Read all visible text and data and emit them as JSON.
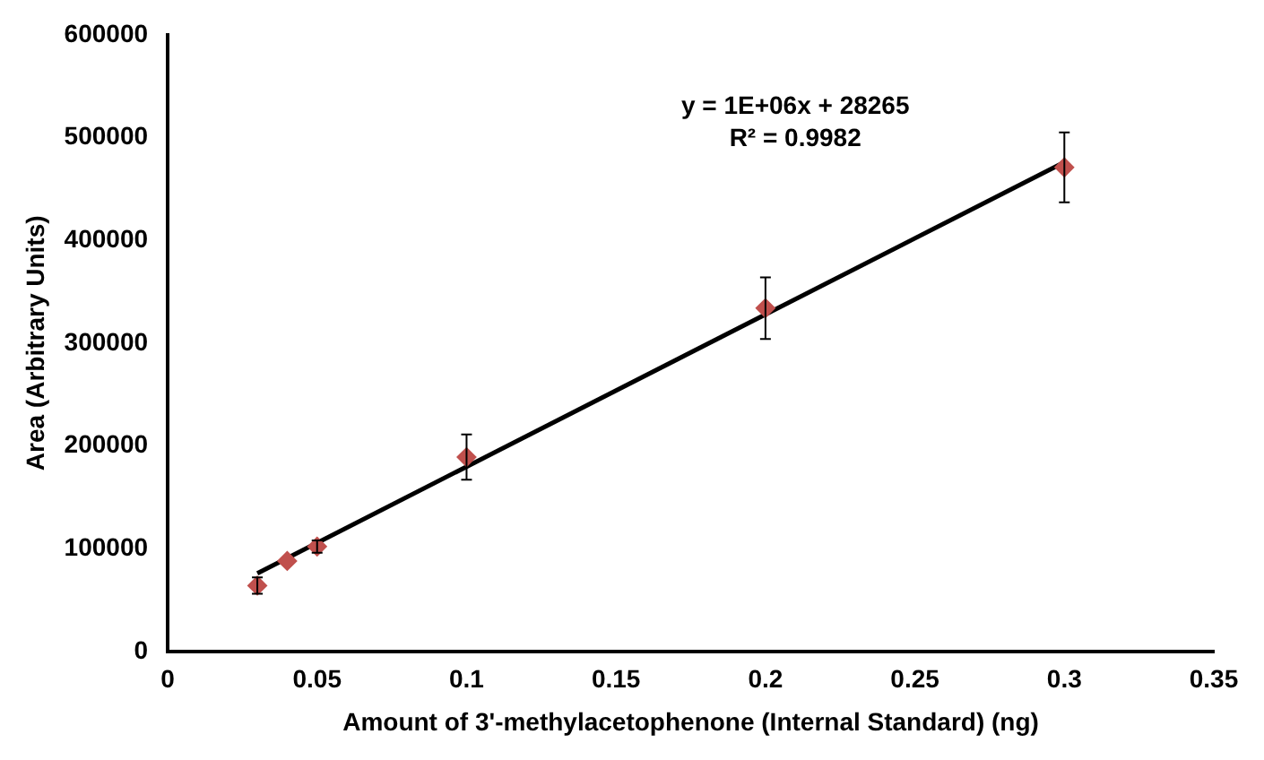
{
  "chart_data": {
    "type": "scatter",
    "xlabel": "Amount of 3'-methylacetophenone (Internal Standard) (ng)",
    "ylabel": "Area (Arbitrary Units)",
    "annotations": [
      "y = 1E+06x + 28265",
      "R² = 0.9982"
    ],
    "series": [
      {
        "type": "scatter",
        "color": "#c0504d",
        "x": [
          0.03,
          0.04,
          0.05,
          0.1,
          0.2,
          0.3
        ],
        "values": [
          64000,
          88000,
          102000,
          189000,
          334000,
          471000
        ],
        "errors": [
          8000,
          null,
          6000,
          22000,
          30000,
          34000
        ],
        "marker": "diamond"
      },
      {
        "type": "line",
        "color": "#000000",
        "x": [
          0.03,
          0.3
        ],
        "values": [
          76000,
          476000
        ],
        "marker": "none"
      }
    ],
    "xlim": [
      0,
      0.35
    ],
    "xticks": [
      0,
      0.05,
      0.1,
      0.15,
      0.2,
      0.25,
      0.3,
      0.35
    ],
    "ylim": [
      0,
      600000
    ],
    "yticks": [
      0,
      100000,
      200000,
      300000,
      400000,
      500000,
      600000
    ],
    "grid": false,
    "legend": false
  }
}
